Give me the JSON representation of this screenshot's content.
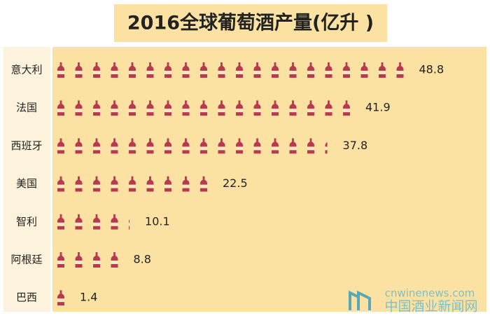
{
  "chart_data": {
    "type": "pictogram",
    "title": "2016全球葡萄酒产量(亿升 )",
    "categories": [
      "意大利",
      "法国",
      "西班牙",
      "美国",
      "智利",
      "阿根廷",
      "巴西"
    ],
    "values": [
      48.8,
      41.9,
      37.8,
      22.5,
      10.1,
      8.8,
      1.4
    ],
    "color": "#b83a4f"
  },
  "watermark": {
    "url": "cnwinenews.com",
    "name": "中国酒业新闻网"
  }
}
